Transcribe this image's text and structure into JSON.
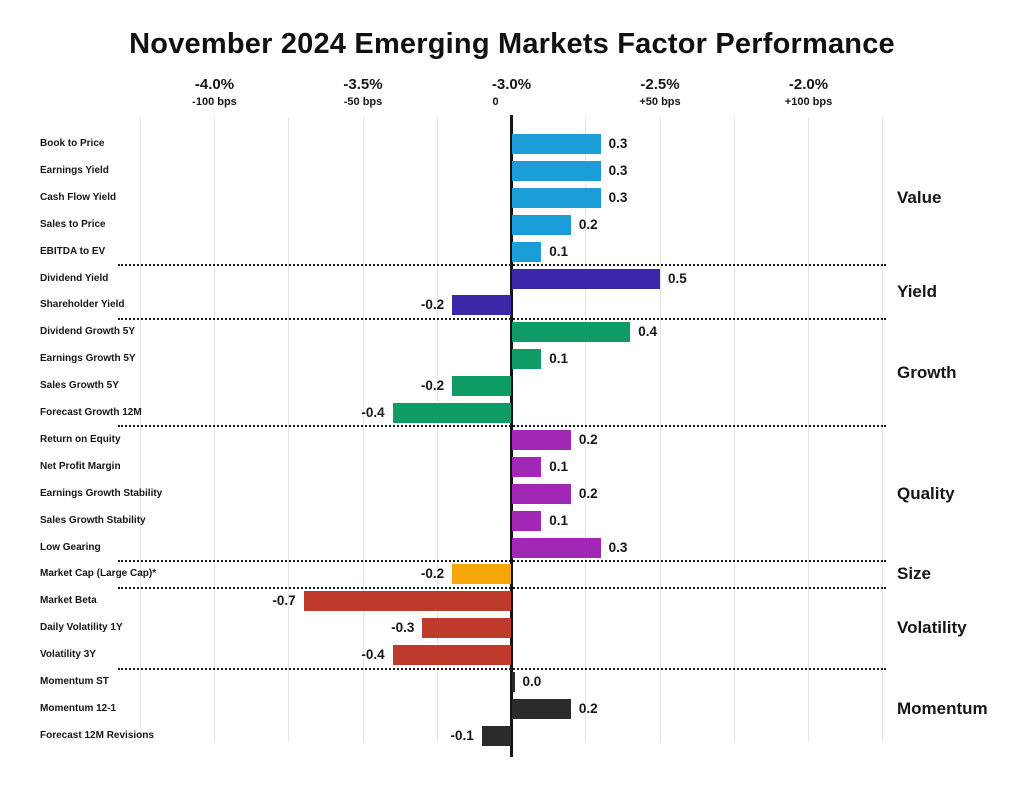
{
  "chart_data": {
    "type": "bar",
    "orientation": "horizontal",
    "title": "November 2024 Emerging Markets Factor Performance",
    "x_axis": {
      "grid": true,
      "range_pct": [
        -4.25,
        -1.75
      ],
      "range_bps": [
        -125,
        125
      ],
      "ticks": [
        {
          "pct": "-4.0%",
          "bps": "-100 bps",
          "value": -1.0
        },
        {
          "pct": "-3.5%",
          "bps": "-50 bps",
          "value": -0.5
        },
        {
          "pct": "-3.0%",
          "bps": "0",
          "value": 0.0
        },
        {
          "pct": "-2.5%",
          "bps": "+50 bps",
          "value": 0.5
        },
        {
          "pct": "-2.0%",
          "bps": "+100 bps",
          "value": 1.0
        }
      ]
    },
    "axis_color": "#141414",
    "groups": [
      {
        "name": "Value",
        "color": "#1B9ED8",
        "factors": [
          {
            "label": "Book to Price",
            "value": 0.3,
            "display": "0.3"
          },
          {
            "label": "Earnings Yield",
            "value": 0.3,
            "display": "0.3"
          },
          {
            "label": "Cash Flow Yield",
            "value": 0.3,
            "display": "0.3"
          },
          {
            "label": "Sales to Price",
            "value": 0.2,
            "display": "0.2"
          },
          {
            "label": "EBITDA to EV",
            "value": 0.1,
            "display": "0.1"
          }
        ]
      },
      {
        "name": "Yield",
        "color": "#3A28A8",
        "factors": [
          {
            "label": "Dividend Yield",
            "value": 0.5,
            "display": "0.5"
          },
          {
            "label": "Shareholder Yield",
            "value": -0.2,
            "display": "-0.2"
          }
        ]
      },
      {
        "name": "Growth",
        "color": "#0E9B66",
        "factors": [
          {
            "label": "Dividend Growth 5Y",
            "value": 0.4,
            "display": "0.4"
          },
          {
            "label": "Earnings Growth 5Y",
            "value": 0.1,
            "display": "0.1"
          },
          {
            "label": "Sales Growth 5Y",
            "value": -0.2,
            "display": "-0.2"
          },
          {
            "label": "Forecast Growth 12M",
            "value": -0.4,
            "display": "-0.4"
          }
        ]
      },
      {
        "name": "Quality",
        "color": "#A128B5",
        "factors": [
          {
            "label": "Return on Equity",
            "value": 0.2,
            "display": "0.2"
          },
          {
            "label": "Net Profit Margin",
            "value": 0.1,
            "display": "0.1"
          },
          {
            "label": "Earnings Growth Stability",
            "value": 0.2,
            "display": "0.2"
          },
          {
            "label": "Sales Growth Stability",
            "value": 0.1,
            "display": "0.1"
          },
          {
            "label": "Low Gearing",
            "value": 0.3,
            "display": "0.3"
          }
        ]
      },
      {
        "name": "Size",
        "color": "#F6A608",
        "factors": [
          {
            "label": "Market Cap (Large Cap)*",
            "value": -0.2,
            "display": "-0.2"
          }
        ]
      },
      {
        "name": "Volatility",
        "color": "#BE3A2B",
        "factors": [
          {
            "label": "Market Beta",
            "value": -0.7,
            "display": "-0.7"
          },
          {
            "label": "Daily Volatility 1Y",
            "value": -0.3,
            "display": "-0.3"
          },
          {
            "label": "Volatility 3Y",
            "value": -0.4,
            "display": "-0.4"
          }
        ]
      },
      {
        "name": "Momentum",
        "color": "#2B2B2B",
        "factors": [
          {
            "label": "Momentum ST",
            "value": 0.0,
            "display": "0.0"
          },
          {
            "label": "Momentum 12-1",
            "value": 0.2,
            "display": "0.2"
          },
          {
            "label": "Forecast 12M Revisions",
            "value": -0.1,
            "display": "-0.1"
          }
        ]
      }
    ]
  }
}
